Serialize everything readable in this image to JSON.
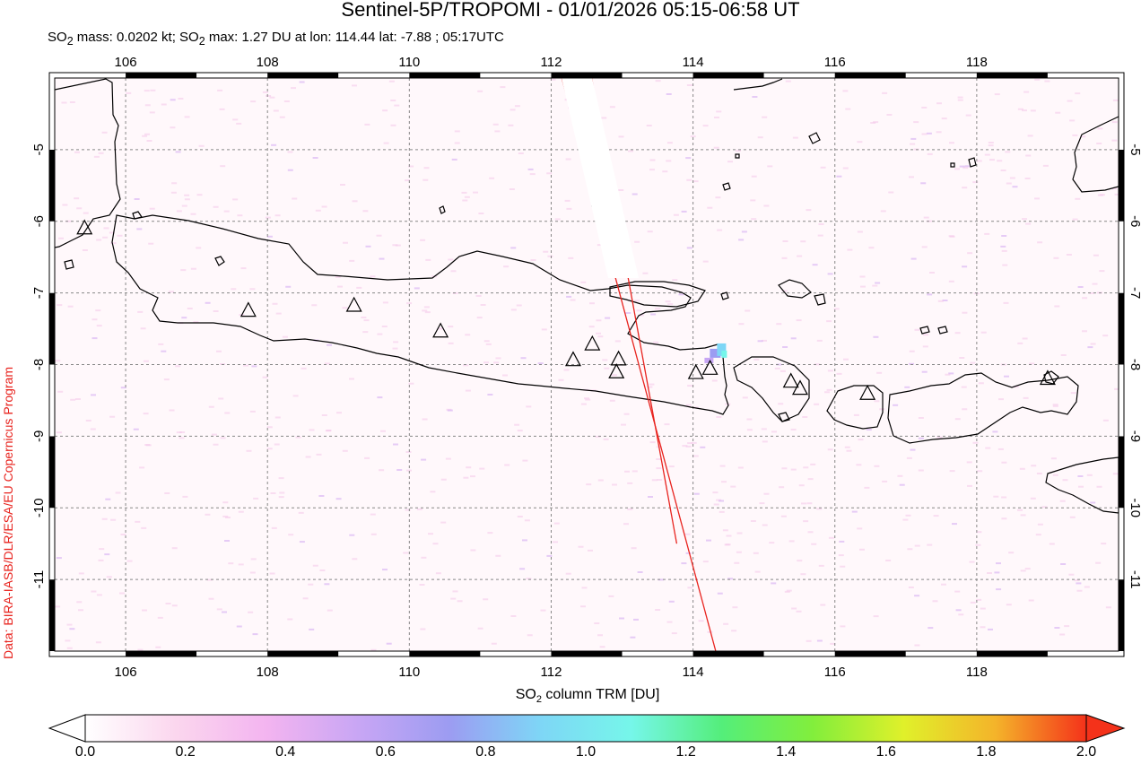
{
  "title": "Sentinel-5P/TROPOMI - 01/01/2026 05:15-06:58 UT",
  "subtitle": {
    "p1": "SO",
    "sub1": "2",
    "p2": " mass: 0.0202 kt; SO",
    "sub2": "2",
    "p3": " max: 1.27 DU at lon: 114.44 lat: -7.88 ; 05:17UTC"
  },
  "credit": "Data: BIRA-IASB/DLR/ESA/EU Copernicus Program",
  "map": {
    "lon_range": [
      105.0,
      120.0
    ],
    "lat_range": [
      -12.0,
      -4.0
    ],
    "lon_ticks": [
      {
        "v": 106,
        "t": "106"
      },
      {
        "v": 108,
        "t": "108"
      },
      {
        "v": 110,
        "t": "110"
      },
      {
        "v": 112,
        "t": "112"
      },
      {
        "v": 114,
        "t": "114"
      },
      {
        "v": 116,
        "t": "116"
      },
      {
        "v": 118,
        "t": "118"
      }
    ],
    "lat_ticks": [
      {
        "v": -5,
        "t": "-5"
      },
      {
        "v": -6,
        "t": "-6"
      },
      {
        "v": -7,
        "t": "-7"
      },
      {
        "v": -8,
        "t": "-8"
      },
      {
        "v": -9,
        "t": "-9"
      },
      {
        "v": -10,
        "t": "-10"
      },
      {
        "v": -11,
        "t": "-11"
      }
    ],
    "volcanoes": [
      {
        "lon": 105.42,
        "lat": -6.1
      },
      {
        "lon": 107.73,
        "lat": -7.25
      },
      {
        "lon": 109.22,
        "lat": -7.18
      },
      {
        "lon": 110.44,
        "lat": -7.54
      },
      {
        "lon": 112.31,
        "lat": -7.94
      },
      {
        "lon": 112.58,
        "lat": -7.72
      },
      {
        "lon": 112.95,
        "lat": -7.93
      },
      {
        "lon": 112.92,
        "lat": -8.11
      },
      {
        "lon": 114.04,
        "lat": -8.12
      },
      {
        "lon": 114.24,
        "lat": -8.06
      },
      {
        "lon": 115.38,
        "lat": -8.24
      },
      {
        "lon": 115.51,
        "lat": -8.34
      },
      {
        "lon": 116.46,
        "lat": -8.41
      },
      {
        "lon": 119.0,
        "lat": -8.2
      }
    ],
    "so2_max": {
      "lon": 114.44,
      "lat": -7.88,
      "value": 1.27
    },
    "swath_edges": [
      {
        "lon1": 112.15,
        "lat1": -4.0,
        "lon2": 114.32,
        "lat2": -12.0
      },
      {
        "lon1": 112.57,
        "lat1": -4.0,
        "lon2": 113.77,
        "lat2": -10.5
      }
    ],
    "colors": {
      "coast": "#000000",
      "swath": "#e8231e",
      "grid": "#888888",
      "noise": "#f4c6ea"
    }
  },
  "colorbar": {
    "title_main": "SO",
    "title_sub": "2",
    "title_rest": " column TRM [DU]",
    "range": [
      0.0,
      2.0
    ],
    "labels": [
      "0.0",
      "0.2",
      "0.4",
      "0.6",
      "0.8",
      "1.0",
      "1.2",
      "1.4",
      "1.6",
      "1.8",
      "2.0"
    ],
    "stops": [
      "#ffffff",
      "#fbd6ee",
      "#f3b4f0",
      "#c8a6f4",
      "#9c9cf2",
      "#7ed6f6",
      "#76f6ea",
      "#54ee7a",
      "#82ee3c",
      "#e0f02a",
      "#f4b42a",
      "#f4321a"
    ]
  }
}
